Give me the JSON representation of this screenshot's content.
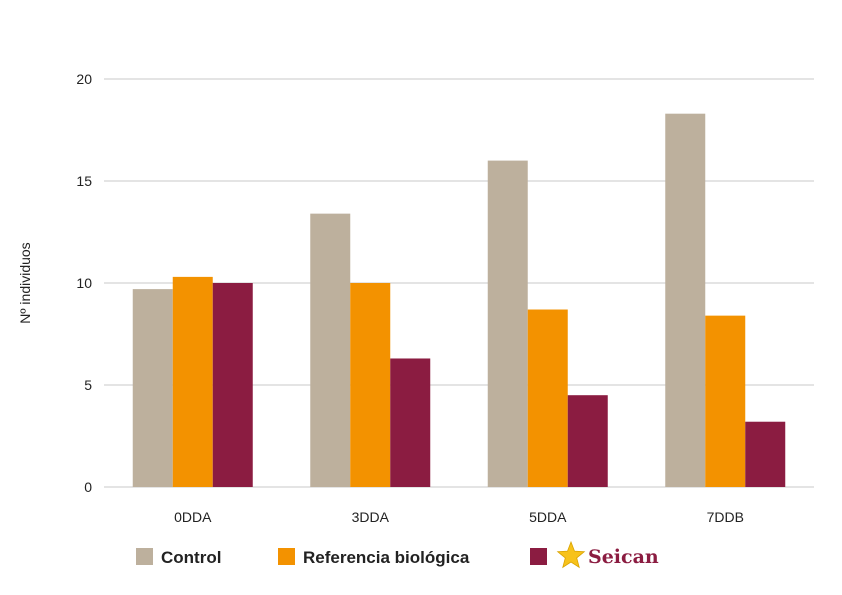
{
  "chart_data": {
    "type": "bar",
    "title": "",
    "xlabel": "",
    "ylabel": "Nº individuos",
    "ylim": [
      0,
      20
    ],
    "yticks": [
      0,
      5,
      10,
      15,
      20
    ],
    "grid": true,
    "legend_position": "bottom",
    "categories": [
      "0DDA",
      "3DDA",
      "5DDA",
      "7DDB"
    ],
    "series": [
      {
        "name": "Control",
        "color": "#bdb09d",
        "values": [
          9.7,
          13.4,
          16.0,
          18.3
        ]
      },
      {
        "name": "Referencia biológica",
        "color": "#f39200",
        "values": [
          10.3,
          10.0,
          8.7,
          8.4
        ]
      },
      {
        "name": "Seican",
        "color": "#8b1c41",
        "values": [
          10.0,
          6.3,
          4.5,
          3.2
        ]
      }
    ]
  },
  "colors": {
    "gridline": "#c8c8c8",
    "logo_star": "#f7c21b"
  },
  "legend_logo_icon": "seican-star-logo"
}
